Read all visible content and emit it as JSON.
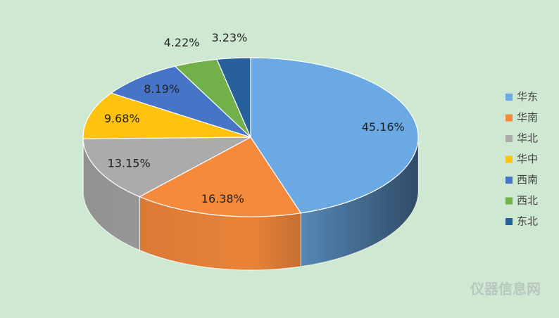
{
  "chart_data": {
    "type": "pie3d",
    "categories": [
      "华东",
      "华南",
      "华北",
      "华中",
      "西南",
      "西北",
      "东北"
    ],
    "values": [
      45.16,
      16.38,
      13.15,
      9.68,
      8.19,
      4.22,
      3.23
    ],
    "value_labels": [
      "45.16%",
      "16.38%",
      "13.15%",
      "9.68%",
      "8.19%",
      "4.22%",
      "3.23%"
    ],
    "colors": [
      "#6aa9e3",
      "#f68a3c",
      "#ababab",
      "#ffc20e",
      "#4674c6",
      "#72b04a",
      "#27609a"
    ],
    "legend": "right"
  },
  "watermark": "仪器信息网"
}
